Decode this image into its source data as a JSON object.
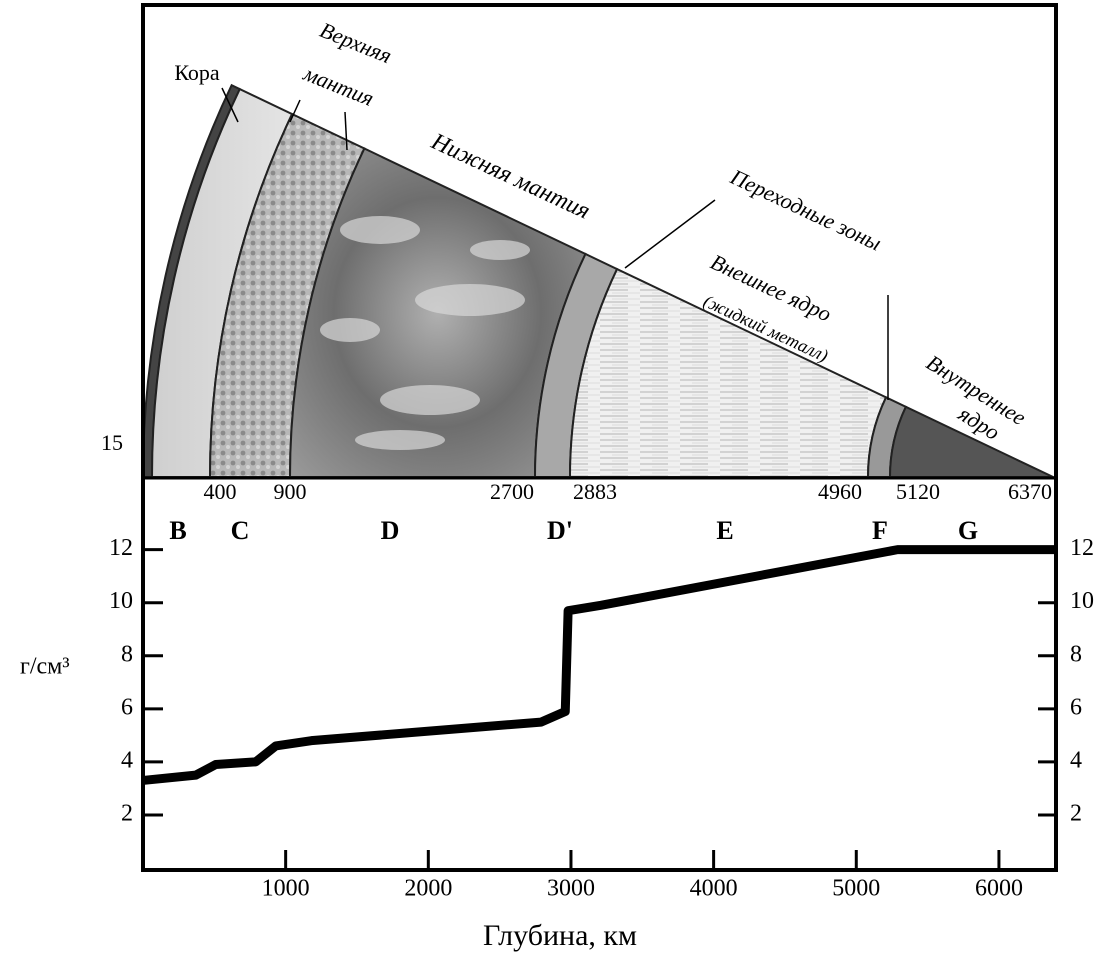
{
  "chart_data": {
    "type": "line",
    "xlabel": "Глубина, км",
    "ylabel": "г/см³",
    "x": [
      0,
      370,
      510,
      790,
      930,
      1180,
      2790,
      2960,
      2980,
      3210,
      5290,
      6400
    ],
    "values": [
      3.3,
      3.5,
      3.9,
      4.0,
      4.6,
      4.8,
      5.5,
      5.9,
      9.7,
      9.9,
      12.0,
      12.0
    ],
    "color": "#000000",
    "xlim": [
      0,
      6400
    ],
    "xticks": [
      1000,
      2000,
      3000,
      4000,
      5000,
      6000
    ],
    "ylim": [
      0,
      14.7
    ],
    "yticks": [
      2,
      4,
      6,
      8,
      10,
      12
    ],
    "y2lim": [
      0,
      14.7
    ],
    "y2ticks": [
      2,
      4,
      6,
      8,
      10,
      12
    ],
    "zones": [
      "B",
      "C",
      "D",
      "D'",
      "E",
      "F",
      "G"
    ]
  },
  "illustration": {
    "scale_label": 15,
    "boundaries": [
      400,
      900,
      2700,
      2883,
      4960,
      5120,
      6370
    ],
    "labels": [
      "Кора",
      "Верхняя",
      "мантия",
      "Нижняя мантия",
      "Переходные зоны",
      "Внешнее ядро",
      "(жидкий металл)",
      "Внутреннее",
      "ядро"
    ]
  }
}
